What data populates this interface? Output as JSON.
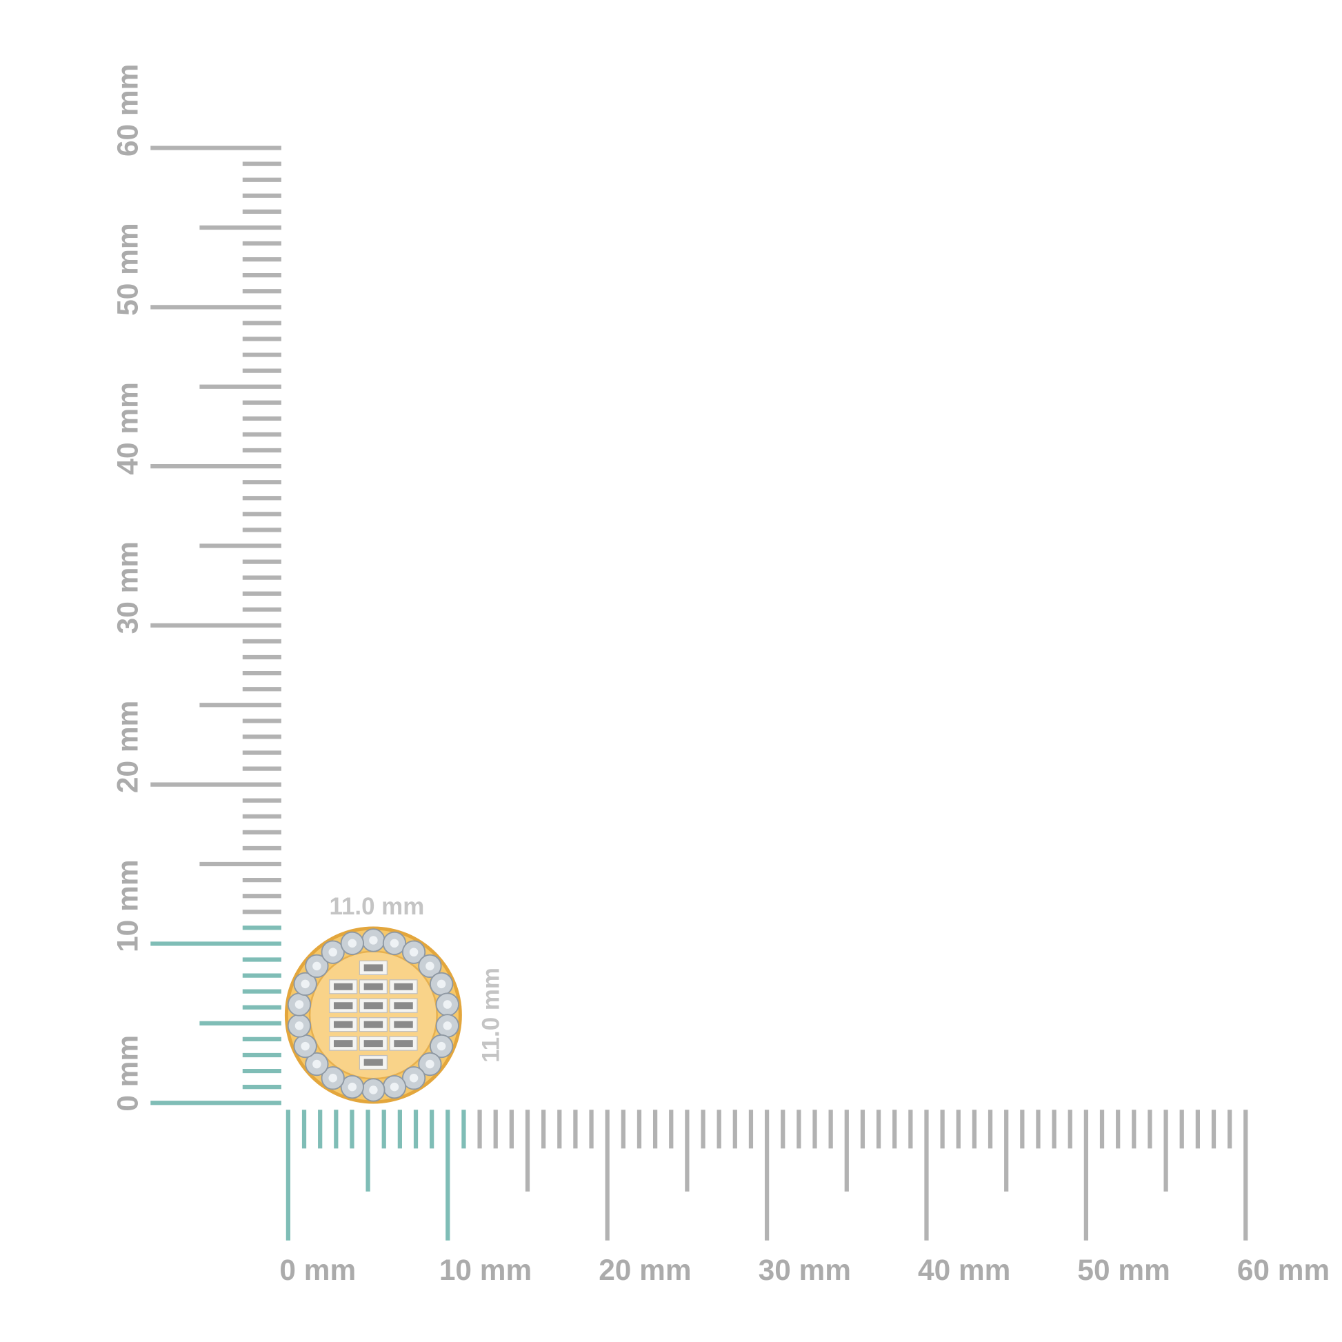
{
  "rulers": {
    "unit": "mm",
    "range_mm": [
      0,
      60
    ],
    "highlight_to_mm": 11,
    "vertical_labels": [
      "0 mm",
      "10 mm",
      "20 mm",
      "30 mm",
      "40 mm",
      "50 mm",
      "60 mm"
    ],
    "horizontal_labels": [
      "0 mm",
      "10 mm",
      "20 mm",
      "30 mm",
      "40 mm",
      "50 mm",
      "60 mm"
    ]
  },
  "product": {
    "width_label": "11.0 mm",
    "height_label": "11.0 mm",
    "width_mm": 11.0,
    "height_mm": 11.0,
    "halo_stone_count": 22,
    "baguette_count": 14
  },
  "colors": {
    "ruler_gray": "#b2b2b2",
    "ruler_highlight": "#7fbdb6",
    "gold": "#f6c86a",
    "gold_edge": "#e3a63c",
    "diamond": "#c9d0d6",
    "dimension_text": "#c4c4c4"
  }
}
